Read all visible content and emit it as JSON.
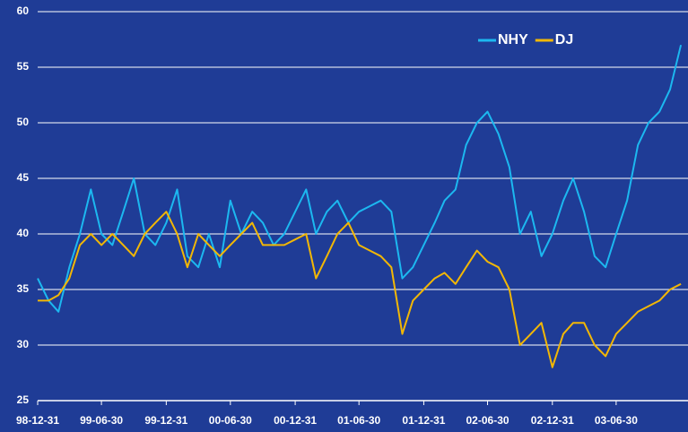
{
  "chart_data": {
    "type": "line",
    "x": [
      "1998-12-31",
      "1999-01-31",
      "1999-02-28",
      "1999-03-31",
      "1999-04-30",
      "1999-05-31",
      "1999-06-30",
      "1999-07-31",
      "1999-08-31",
      "1999-09-30",
      "1999-10-31",
      "1999-11-30",
      "1999-12-31",
      "2000-01-31",
      "2000-02-29",
      "2000-03-31",
      "2000-04-30",
      "2000-05-31",
      "2000-06-30",
      "2000-07-31",
      "2000-08-31",
      "2000-09-30",
      "2000-10-31",
      "2000-11-30",
      "2000-12-31",
      "2001-01-31",
      "2001-02-28",
      "2001-03-31",
      "2001-04-30",
      "2001-05-31",
      "2001-06-30",
      "2001-07-31",
      "2001-08-31",
      "2001-09-30",
      "2001-10-31",
      "2001-11-30",
      "2001-12-31",
      "2002-01-31",
      "2002-02-28",
      "2002-03-31",
      "2002-04-30",
      "2002-05-31",
      "2002-06-30",
      "2002-07-31",
      "2002-08-31",
      "2002-09-30",
      "2002-10-31",
      "2002-11-30",
      "2002-12-31",
      "2003-01-31",
      "2003-02-28",
      "2003-03-31",
      "2003-04-30",
      "2003-05-31",
      "2003-06-30",
      "2003-07-31",
      "2003-08-31",
      "2003-09-30",
      "2003-10-31",
      "2003-11-30",
      "2003-12-31"
    ],
    "series": [
      {
        "name": "NHY",
        "color": "#1cb8f0",
        "values": [
          36,
          34,
          33,
          37,
          40,
          44,
          40,
          39,
          42,
          45,
          40,
          39,
          41,
          44,
          38,
          37,
          40,
          37,
          43,
          40,
          42,
          41,
          39,
          40,
          42,
          44,
          40,
          42,
          43,
          41,
          42,
          42.5,
          43,
          42,
          36,
          37,
          39,
          41,
          43,
          44,
          48,
          50,
          51,
          49,
          46,
          40,
          42,
          38,
          40,
          43,
          45,
          42,
          38,
          37,
          40,
          43,
          48,
          50,
          51,
          53,
          57
        ]
      },
      {
        "name": "DJ",
        "color": "#f2b705",
        "values": [
          34,
          34,
          34.5,
          36,
          39,
          40,
          39,
          40,
          39,
          38,
          40,
          41,
          42,
          40,
          37,
          40,
          39,
          38,
          39,
          40,
          41,
          39,
          39,
          39,
          39.5,
          40,
          36,
          38,
          40,
          41,
          39,
          38.5,
          38,
          37,
          31,
          34,
          35,
          36,
          36.5,
          35.5,
          37,
          38.5,
          37.5,
          37,
          35,
          30,
          31,
          32,
          28,
          31,
          32,
          32,
          30,
          29,
          31,
          32,
          33,
          33.5,
          34,
          35,
          35.5
        ]
      }
    ],
    "xlim": [
      "1998-12-31",
      "2004-01-20"
    ],
    "xticks": [
      {
        "value": "1998-12-31",
        "label": "98-12-31"
      },
      {
        "value": "1999-06-30",
        "label": "99-06-30"
      },
      {
        "value": "1999-12-31",
        "label": "99-12-31"
      },
      {
        "value": "2000-06-30",
        "label": "00-06-30"
      },
      {
        "value": "2000-12-31",
        "label": "00-12-31"
      },
      {
        "value": "2001-06-30",
        "label": "01-06-30"
      },
      {
        "value": "2001-12-31",
        "label": "01-12-31"
      },
      {
        "value": "2002-06-30",
        "label": "02-06-30"
      },
      {
        "value": "2002-12-31",
        "label": "02-12-31"
      },
      {
        "value": "2003-06-30",
        "label": "03-06-30"
      }
    ],
    "ylim": [
      25,
      60
    ],
    "yticks": [
      25,
      30,
      35,
      40,
      45,
      50,
      55,
      60
    ],
    "grid": true,
    "legend": "top-right",
    "background": "#1f3c96"
  }
}
